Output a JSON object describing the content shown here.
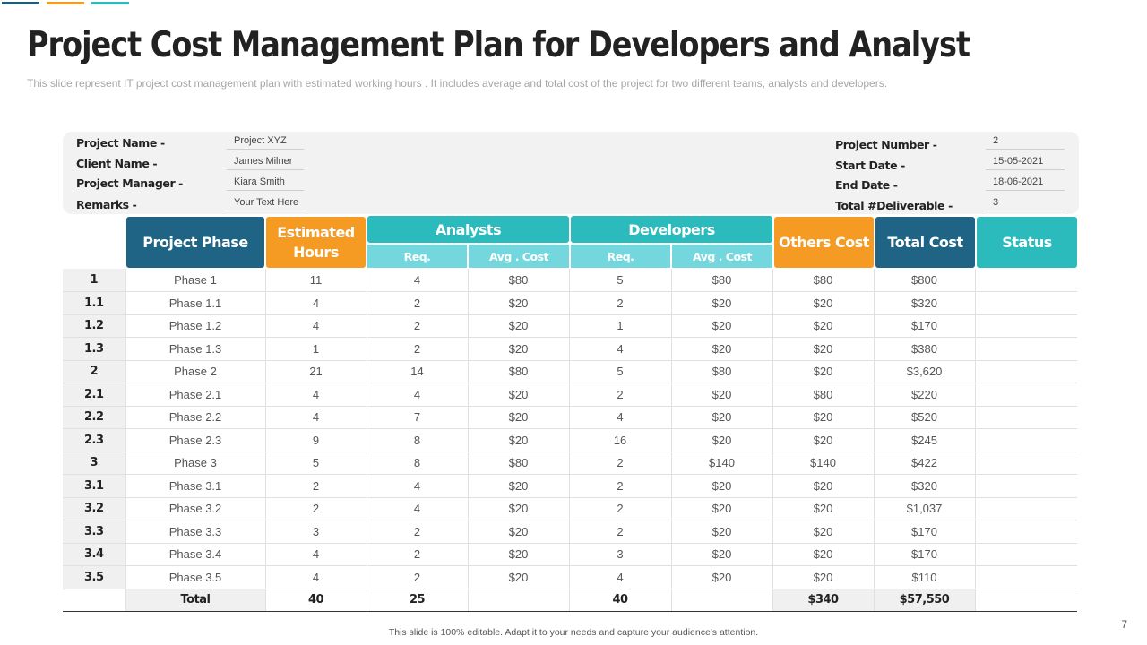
{
  "title": "Project Cost Management Plan for Developers and Analyst",
  "subtitle": "This slide represent IT project cost management  plan with estimated working hours . It includes average  and total cost of the project for two different  teams, analysts and developers.",
  "info": {
    "project_name": {
      "label": "Project Name  -",
      "value": "Project XYZ"
    },
    "client_name": {
      "label": "Client Name  -",
      "value": "James Milner"
    },
    "project_manager": {
      "label": "Project Manager  -",
      "value": "Kiara Smith"
    },
    "remarks": {
      "label": "Remarks -",
      "value": "Your Text Here"
    },
    "project_number": {
      "label": "Project Number  -",
      "value": "2"
    },
    "start_date": {
      "label": "Start Date -",
      "value": "15-05-2021"
    },
    "end_date": {
      "label": "End Date -",
      "value": "18-06-2021"
    },
    "total_deliverable": {
      "label": "Total #Deliverable -",
      "value": "3"
    }
  },
  "headers": {
    "project_phase": "Project Phase",
    "estimated_hours": "Estimated Hours",
    "analysts": "Analysts",
    "developers": "Developers",
    "req": "Req.",
    "avg_cost": "Avg . Cost",
    "others_cost": "Others Cost",
    "total_cost": "Total Cost",
    "status": "Status"
  },
  "rows": [
    {
      "id": "1",
      "phase": "Phase 1",
      "hours": "11",
      "a_req": "4",
      "a_cost": "$80",
      "d_req": "5",
      "d_cost": "$80",
      "others": "$80",
      "total": "$800",
      "status": ""
    },
    {
      "id": "1.1",
      "phase": "Phase 1.1",
      "hours": "4",
      "a_req": "2",
      "a_cost": "$20",
      "d_req": "2",
      "d_cost": "$20",
      "others": "$20",
      "total": "$320",
      "status": ""
    },
    {
      "id": "1.2",
      "phase": "Phase 1.2",
      "hours": "4",
      "a_req": "2",
      "a_cost": "$20",
      "d_req": "1",
      "d_cost": "$20",
      "others": "$20",
      "total": "$170",
      "status": ""
    },
    {
      "id": "1.3",
      "phase": "Phase 1.3",
      "hours": "1",
      "a_req": "2",
      "a_cost": "$20",
      "d_req": "4",
      "d_cost": "$20",
      "others": "$20",
      "total": "$380",
      "status": ""
    },
    {
      "id": "2",
      "phase": "Phase 2",
      "hours": "21",
      "a_req": "14",
      "a_cost": "$80",
      "d_req": "5",
      "d_cost": "$80",
      "others": "$20",
      "total": "$3,620",
      "status": ""
    },
    {
      "id": "2.1",
      "phase": "Phase 2.1",
      "hours": "4",
      "a_req": "4",
      "a_cost": "$20",
      "d_req": "2",
      "d_cost": "$20",
      "others": "$80",
      "total": "$220",
      "status": ""
    },
    {
      "id": "2.2",
      "phase": "Phase 2.2",
      "hours": "4",
      "a_req": "7",
      "a_cost": "$20",
      "d_req": "4",
      "d_cost": "$20",
      "others": "$20",
      "total": "$520",
      "status": ""
    },
    {
      "id": "2.3",
      "phase": "Phase 2.3",
      "hours": "9",
      "a_req": "8",
      "a_cost": "$20",
      "d_req": "16",
      "d_cost": "$20",
      "others": "$20",
      "total": "$245",
      "status": ""
    },
    {
      "id": "3",
      "phase": "Phase 3",
      "hours": "5",
      "a_req": "8",
      "a_cost": "$80",
      "d_req": "2",
      "d_cost": "$140",
      "others": "$140",
      "total": "$422",
      "status": ""
    },
    {
      "id": "3.1",
      "phase": "Phase 3.1",
      "hours": "2",
      "a_req": "4",
      "a_cost": "$20",
      "d_req": "2",
      "d_cost": "$20",
      "others": "$20",
      "total": "$320",
      "status": ""
    },
    {
      "id": "3.2",
      "phase": "Phase 3.2",
      "hours": "2",
      "a_req": "4",
      "a_cost": "$20",
      "d_req": "2",
      "d_cost": "$20",
      "others": "$20",
      "total": "$1,037",
      "status": ""
    },
    {
      "id": "3.3",
      "phase": "Phase 3.3",
      "hours": "3",
      "a_req": "2",
      "a_cost": "$20",
      "d_req": "2",
      "d_cost": "$20",
      "others": "$20",
      "total": "$170",
      "status": ""
    },
    {
      "id": "3.4",
      "phase": "Phase 3.4",
      "hours": "4",
      "a_req": "2",
      "a_cost": "$20",
      "d_req": "3",
      "d_cost": "$20",
      "others": "$20",
      "total": "$170",
      "status": ""
    },
    {
      "id": "3.5",
      "phase": "Phase 3.5",
      "hours": "4",
      "a_req": "2",
      "a_cost": "$20",
      "d_req": "4",
      "d_cost": "$20",
      "others": "$20",
      "total": "$110",
      "status": ""
    }
  ],
  "totals": {
    "label": "Total",
    "hours": "40",
    "a_req": "25",
    "d_req": "40",
    "others": "$340",
    "total": "$57,550"
  },
  "footer": "This slide is 100% editable. Adapt it to your needs and capture your audience's attention.",
  "page_number": "7"
}
